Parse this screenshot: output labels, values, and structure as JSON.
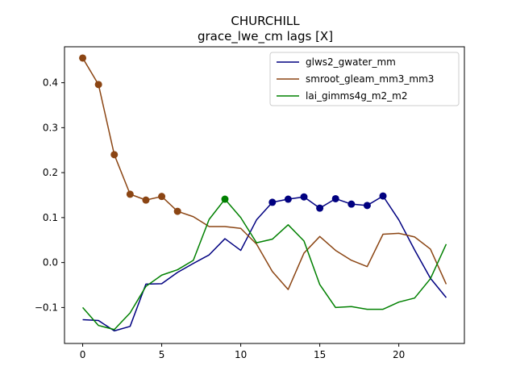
{
  "chart_data": {
    "type": "line",
    "title": "CHURCHILL",
    "subtitle": "grace_lwe_cm lags [X]",
    "xlabel": "",
    "ylabel": "",
    "xlim": [
      -1.15,
      24.15
    ],
    "ylim": [
      -0.18,
      0.48
    ],
    "xticks": [
      0,
      5,
      10,
      15,
      20
    ],
    "yticks": [
      -0.1,
      0.0,
      0.1,
      0.2,
      0.3,
      0.4
    ],
    "ytick_labels": [
      "−0.1",
      "0.0",
      "0.1",
      "0.2",
      "0.3",
      "0.4"
    ],
    "legend_position": "top-right",
    "grid": false,
    "x": [
      0,
      1,
      2,
      3,
      4,
      5,
      6,
      7,
      8,
      9,
      10,
      11,
      12,
      13,
      14,
      15,
      16,
      17,
      18,
      19,
      20,
      21,
      22,
      23
    ],
    "series": [
      {
        "name": "glws2_gwater_mm",
        "color": "#000080",
        "values": [
          -0.127,
          -0.129,
          -0.152,
          -0.142,
          -0.048,
          -0.047,
          -0.022,
          -0.002,
          0.017,
          0.053,
          0.027,
          0.095,
          0.134,
          0.141,
          0.146,
          0.121,
          0.142,
          0.13,
          0.127,
          0.148,
          0.095,
          0.028,
          -0.035,
          -0.078
        ],
        "markers": [
          12,
          13,
          14,
          15,
          16,
          17,
          18,
          19
        ]
      },
      {
        "name": "smroot_gleam_mm3_mm3",
        "color": "#8b4513",
        "values": [
          0.455,
          0.396,
          0.24,
          0.152,
          0.139,
          0.147,
          0.114,
          0.102,
          0.08,
          0.08,
          0.076,
          0.041,
          -0.02,
          -0.06,
          0.021,
          0.058,
          0.027,
          0.005,
          -0.009,
          0.063,
          0.065,
          0.057,
          0.03,
          -0.048
        ],
        "markers": [
          0,
          1,
          2,
          3,
          4,
          5,
          6
        ]
      },
      {
        "name": "lai_gimms4g_m2_m2",
        "color": "#008000",
        "values": [
          -0.1,
          -0.14,
          -0.149,
          -0.112,
          -0.053,
          -0.028,
          -0.016,
          0.005,
          0.096,
          0.141,
          0.1,
          0.044,
          0.052,
          0.084,
          0.048,
          -0.049,
          -0.1,
          -0.098,
          -0.104,
          -0.104,
          -0.088,
          -0.079,
          -0.036,
          0.041
        ],
        "markers": [
          9
        ]
      }
    ]
  }
}
